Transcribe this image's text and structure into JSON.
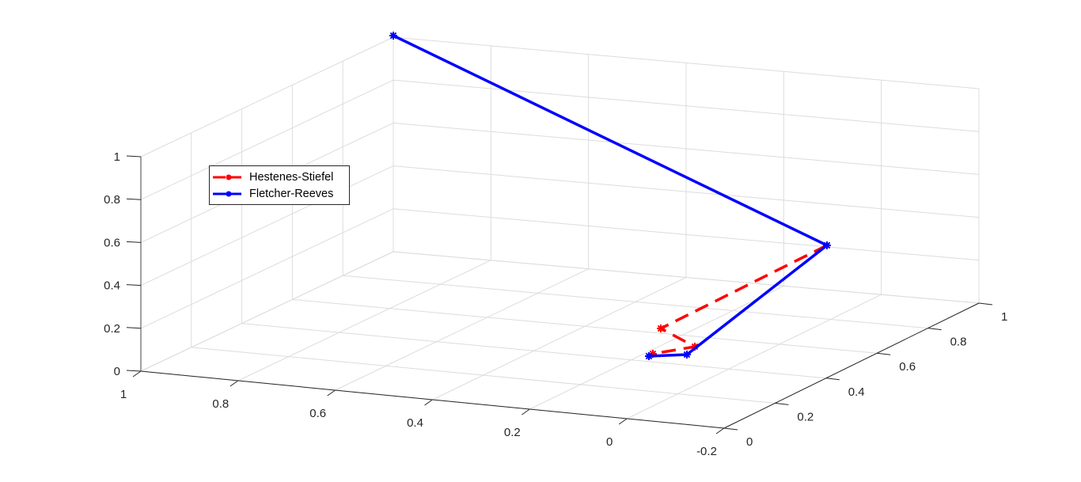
{
  "chart_data": {
    "type": "line3d",
    "title": "",
    "xlabel": "",
    "ylabel": "",
    "zlabel": "",
    "x_ticks": [
      "1",
      "0.8",
      "0.6",
      "0.4",
      "0.2",
      "0",
      "-0.2"
    ],
    "y_ticks": [
      "0",
      "0.2",
      "0.4",
      "0.6",
      "0.8",
      "1"
    ],
    "z_ticks": [
      "0",
      "0.2",
      "0.4",
      "0.6",
      "0.8",
      "1"
    ],
    "xlim": [
      -0.2,
      1
    ],
    "ylim": [
      0,
      1
    ],
    "zlim": [
      0,
      1
    ],
    "grid": true,
    "legend_position": "northwest-inside",
    "series": [
      {
        "name": "Hestenes-Stiefel",
        "color": "#ff0000",
        "line_style": "dashed",
        "marker": "*",
        "points_screen": [
          [
            1045,
            310
          ],
          [
            835,
            415
          ],
          [
            878,
            438
          ],
          [
            825,
            447
          ]
        ]
      },
      {
        "name": "Fletcher-Reeves",
        "color": "#0000ff",
        "line_style": "solid",
        "marker": "*",
        "points_screen": [
          [
            497,
            45
          ],
          [
            1045,
            310
          ],
          [
            868,
            448
          ],
          [
            820,
            450
          ]
        ]
      }
    ]
  },
  "legend": {
    "items": [
      {
        "label": "Hestenes-Stiefel",
        "color": "#ff0000"
      },
      {
        "label": "Fletcher-Reeves",
        "color": "#0000ff"
      }
    ]
  }
}
